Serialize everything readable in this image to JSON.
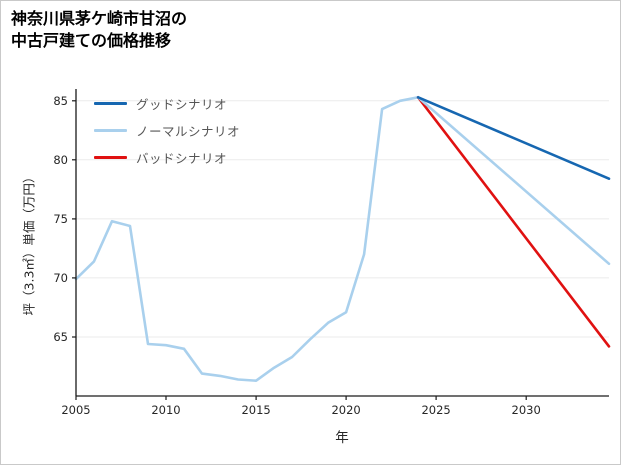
{
  "title": {
    "line1": "神奈川県茅ケ崎市甘沼の",
    "line2": "中古戸建ての価格推移"
  },
  "chart_data": {
    "type": "line",
    "title": "神奈川県茅ケ崎市甘沼の中古戸建ての価格推移",
    "xlabel": "年",
    "ylabel": "坪（3.3㎡）単価（万円）",
    "xlim": [
      2005,
      2034.6
    ],
    "ylim": [
      60,
      86
    ],
    "xticks": [
      2005,
      2010,
      2015,
      2020,
      2025,
      2030
    ],
    "yticks": [
      65,
      70,
      75,
      80,
      85
    ],
    "grid": "horizontal",
    "legend_position": "upper-left",
    "legend": [
      {
        "label": "グッドシナリオ",
        "color": "#1667b1"
      },
      {
        "label": "ノーマルシナリオ",
        "color": "#a9d0ed"
      },
      {
        "label": "バッドシナリオ",
        "color": "#e01111"
      }
    ],
    "series": [
      {
        "key": "history",
        "color": "#a9d0ed",
        "width": 2.6,
        "x": [
          2005,
          2006,
          2007,
          2008,
          2009,
          2010,
          2011,
          2012,
          2013,
          2014,
          2015,
          2016,
          2017,
          2018,
          2019,
          2020,
          2021,
          2022,
          2023,
          2024
        ],
        "y": [
          69.9,
          71.4,
          74.8,
          74.4,
          64.4,
          64.3,
          64.0,
          61.9,
          61.7,
          61.4,
          61.3,
          62.4,
          63.3,
          64.8,
          66.2,
          67.1,
          72.0,
          84.3,
          85.0,
          85.3
        ]
      },
      {
        "key": "bad",
        "label": "バッドシナリオ",
        "color": "#e01111",
        "width": 2.6,
        "x": [
          2024,
          2034.6
        ],
        "y": [
          85.3,
          64.2
        ]
      },
      {
        "key": "normal",
        "label": "ノーマルシナリオ",
        "color": "#a9d0ed",
        "width": 2.6,
        "x": [
          2024,
          2034.6
        ],
        "y": [
          85.3,
          71.2
        ]
      },
      {
        "key": "good",
        "label": "グッドシナリオ",
        "color": "#1667b1",
        "width": 2.6,
        "x": [
          2024,
          2034.6
        ],
        "y": [
          85.3,
          78.4
        ]
      }
    ]
  }
}
